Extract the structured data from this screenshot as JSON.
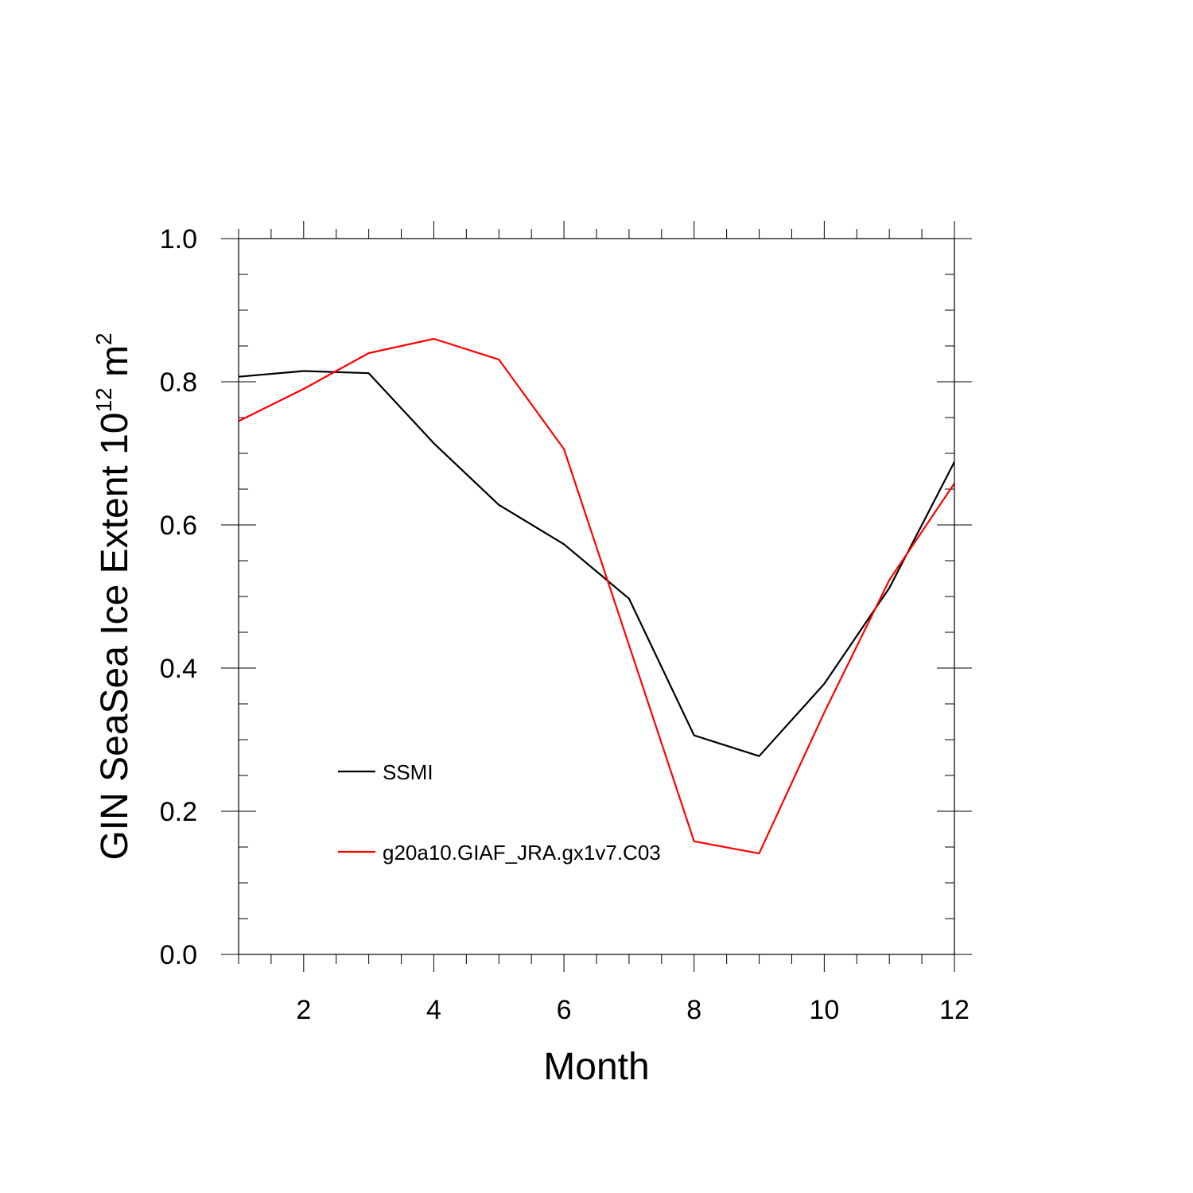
{
  "chart_data": {
    "type": "line",
    "title": "",
    "xlabel": "Month",
    "ylabel": {
      "base": "GIN SeaSea Ice Extent 10",
      "exponent": "12",
      "unit": " m",
      "unit_exponent": "2"
    },
    "xlim": [
      1,
      12
    ],
    "ylim": [
      0,
      1
    ],
    "x_ticks": [
      2,
      4,
      6,
      8,
      10,
      12
    ],
    "x_tick_labels": [
      "2",
      "4",
      "6",
      "8",
      "10",
      "12"
    ],
    "y_ticks": [
      0,
      0.2,
      0.4,
      0.6,
      0.8,
      1.0
    ],
    "y_tick_labels": [
      "0.0",
      "0.2",
      "0.4",
      "0.6",
      "0.8",
      "1.0"
    ],
    "grid": false,
    "legend_position": "lower-left inside",
    "x": [
      1,
      2,
      3,
      4,
      5,
      6,
      7,
      8,
      9,
      10,
      11,
      12
    ],
    "series": [
      {
        "name": "SSMI",
        "color": "#000000",
        "values": [
          0.807,
          0.815,
          0.812,
          0.714,
          0.628,
          0.573,
          0.497,
          0.306,
          0.277,
          0.378,
          0.512,
          0.688
        ]
      },
      {
        "name": "g20a10.GIAF_JRA.gx1v7.C03",
        "color": "#ff0000",
        "values": [
          0.745,
          0.79,
          0.84,
          0.86,
          0.831,
          0.706,
          0.432,
          0.158,
          0.141,
          0.338,
          0.523,
          0.658
        ]
      }
    ]
  }
}
